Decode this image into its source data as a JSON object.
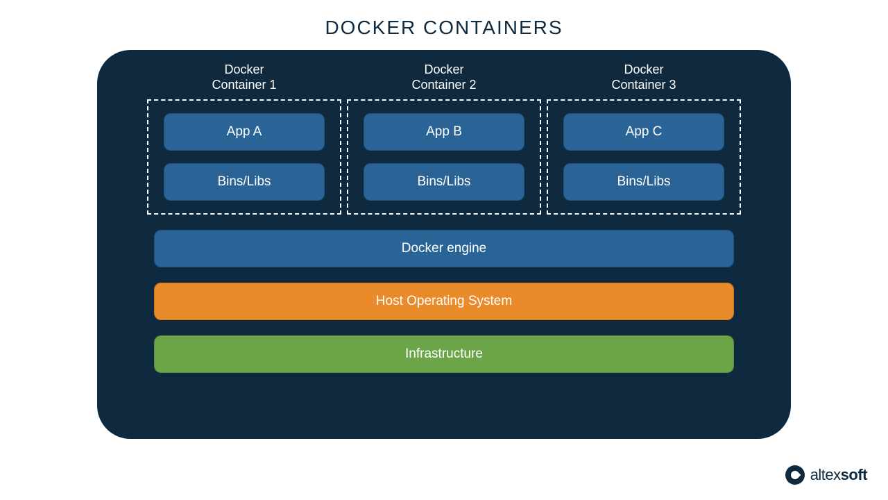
{
  "title": "DOCKER CONTAINERS",
  "colors": {
    "panel_bg": "#0f2a3f",
    "box_blue": "#2a6496",
    "box_orange": "#e98b2a",
    "box_green": "#6ba547",
    "text_white": "#ffffff",
    "text_dark": "#0f2a3f",
    "page_bg": "#ffffff"
  },
  "containers": [
    {
      "label": "Docker\nContainer 1",
      "app": "App A",
      "libs": "Bins/Libs"
    },
    {
      "label": "Docker\nContainer 2",
      "app": "App B",
      "libs": "Bins/Libs"
    },
    {
      "label": "Docker\nContainer 3",
      "app": "App C",
      "libs": "Bins/Libs"
    }
  ],
  "layers": {
    "engine": "Docker engine",
    "os": "Host Operating System",
    "infra": "Infrastructure"
  },
  "logo": {
    "text_light": "altex",
    "text_bold": "soft"
  }
}
